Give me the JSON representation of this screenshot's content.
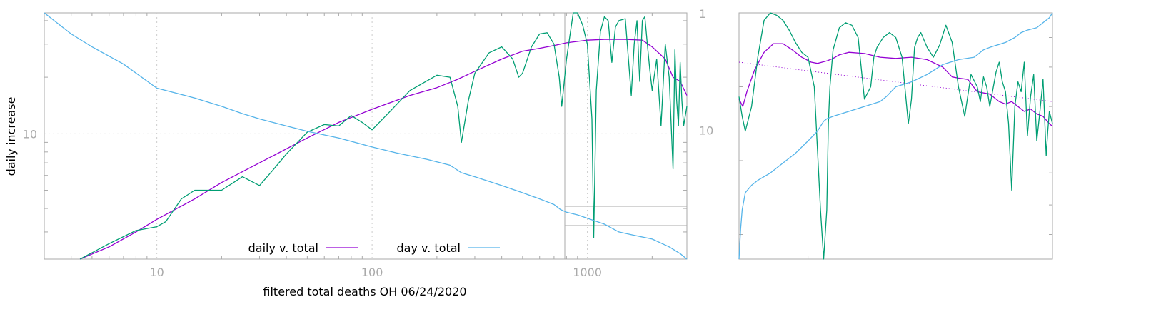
{
  "chart_data": [
    {
      "type": "line",
      "xlabel": "filtered total deaths OH 06/24/2020",
      "ylabel": "daily increase",
      "x_scale": "log",
      "y_scale": "log",
      "xlim": [
        3,
        2900
      ],
      "ylim": [
        2.15,
        44
      ],
      "x_ticks": [
        10,
        100,
        1000
      ],
      "x_tick_labels": [
        "10",
        "100",
        "1000"
      ],
      "y_ticks": [
        10
      ],
      "y_tick_labels": [
        "10"
      ],
      "y2_ticks": [
        1,
        10
      ],
      "y2_tick_labels": [
        "1",
        "10"
      ],
      "grid": true,
      "legend": [
        "daily v. total",
        "day v. total"
      ],
      "series": [
        {
          "name": "daily v. total",
          "color": "#9400d3",
          "x": [
            4.4,
            6,
            8,
            10,
            15,
            20,
            30,
            50,
            70,
            100,
            150,
            200,
            250,
            300,
            400,
            500,
            600,
            700,
            800,
            1000,
            1200,
            1500,
            1800,
            2000,
            2300,
            2500,
            2700,
            2900
          ],
          "y": [
            2.1,
            2.5,
            3.0,
            3.5,
            4.5,
            5.5,
            7.0,
            9.5,
            11.5,
            13.5,
            16.0,
            17.6,
            19.5,
            21.5,
            25.0,
            27.5,
            28.5,
            29.5,
            30.5,
            31.5,
            31.8,
            31.8,
            31.5,
            29.0,
            25.0,
            20.0,
            19.0,
            16.0
          ]
        },
        {
          "name": "",
          "color": "#009e73",
          "x": [
            4.4,
            6,
            8,
            10,
            11,
            13,
            15,
            20,
            25,
            30,
            35,
            40,
            50,
            60,
            70,
            80,
            90,
            100,
            120,
            150,
            200,
            230,
            250,
            260,
            280,
            300,
            350,
            400,
            450,
            480,
            500,
            550,
            600,
            650,
            700,
            740,
            760,
            800,
            860,
            900,
            950,
            1000,
            1050,
            1070,
            1100,
            1150,
            1200,
            1250,
            1300,
            1350,
            1400,
            1500,
            1600,
            1650,
            1700,
            1750,
            1800,
            1850,
            1900,
            1950,
            2000,
            2100,
            2200,
            2300,
            2400,
            2500,
            2550,
            2600,
            2650,
            2700,
            2750,
            2800,
            2900
          ],
          "y": [
            2.1,
            2.6,
            3.05,
            3.2,
            3.4,
            4.5,
            5.0,
            5.0,
            5.9,
            5.3,
            6.5,
            7.8,
            10.2,
            11.2,
            11.0,
            12.5,
            11.5,
            10.5,
            13.0,
            17.0,
            20.5,
            20.0,
            14.0,
            9.0,
            15.0,
            21.0,
            27.0,
            29.0,
            25.0,
            20.0,
            21.0,
            29.0,
            34.0,
            34.5,
            30.0,
            20.0,
            14.0,
            25.0,
            45.0,
            44.0,
            38.0,
            30.0,
            12.0,
            2.8,
            17.0,
            35.0,
            42.0,
            40.0,
            24.0,
            37.0,
            40.0,
            41.0,
            16.0,
            30.0,
            40.0,
            19.0,
            40.0,
            42.0,
            30.0,
            22.0,
            17.0,
            25.0,
            11.0,
            30.0,
            20.0,
            6.5,
            28.0,
            15.0,
            11.0,
            24.0,
            15.0,
            11.0,
            14.0
          ]
        },
        {
          "name": "day v. total",
          "color": "#56b4e9",
          "x": [
            3,
            4,
            5,
            7,
            10,
            15,
            20,
            25,
            30,
            40,
            50,
            70,
            100,
            130,
            180,
            230,
            260,
            300,
            400,
            500,
            600,
            700,
            750,
            800,
            900,
            1000,
            1200,
            1400,
            1600,
            2000,
            2400,
            2700,
            2900
          ],
          "y": [
            44,
            34,
            29,
            23.5,
            17.5,
            15.5,
            14.0,
            12.8,
            12.0,
            11.0,
            10.3,
            9.5,
            8.5,
            7.9,
            7.3,
            6.8,
            6.2,
            5.9,
            5.3,
            4.85,
            4.5,
            4.2,
            3.95,
            3.82,
            3.7,
            3.55,
            3.3,
            3.0,
            2.9,
            2.75,
            2.5,
            2.3,
            2.15
          ]
        }
      ]
    },
    {
      "type": "line",
      "grid": false,
      "series": [
        {
          "name": "",
          "color": "#9400d3",
          "x": [
            0.0,
            0.012,
            0.025,
            0.05,
            0.08,
            0.11,
            0.14,
            0.17,
            0.2,
            0.23,
            0.25,
            0.28,
            0.3,
            0.32,
            0.35,
            0.4,
            0.45,
            0.5,
            0.55,
            0.6,
            0.65,
            0.68,
            0.7,
            0.73,
            0.76,
            0.8,
            0.83,
            0.85,
            0.87,
            0.89,
            0.91,
            0.93,
            0.95,
            0.97,
            0.99,
            1.0
          ],
          "y": [
            0.65,
            0.62,
            0.68,
            0.77,
            0.84,
            0.875,
            0.875,
            0.85,
            0.82,
            0.8,
            0.795,
            0.805,
            0.815,
            0.83,
            0.84,
            0.835,
            0.82,
            0.815,
            0.82,
            0.81,
            0.78,
            0.74,
            0.735,
            0.73,
            0.68,
            0.67,
            0.64,
            0.63,
            0.64,
            0.62,
            0.6,
            0.61,
            0.59,
            0.58,
            0.55,
            0.54
          ]
        },
        {
          "name": "",
          "color": "#9400d3",
          "dashed": true,
          "x": [
            0.0,
            1.0
          ],
          "y": [
            0.8,
            0.64
          ]
        },
        {
          "name": "",
          "color": "#009e73",
          "x": [
            0.0,
            0.01,
            0.02,
            0.04,
            0.06,
            0.08,
            0.1,
            0.12,
            0.14,
            0.16,
            0.18,
            0.2,
            0.22,
            0.24,
            0.26,
            0.27,
            0.28,
            0.285,
            0.29,
            0.3,
            0.32,
            0.34,
            0.36,
            0.38,
            0.4,
            0.42,
            0.43,
            0.44,
            0.46,
            0.48,
            0.5,
            0.52,
            0.54,
            0.55,
            0.56,
            0.57,
            0.58,
            0.6,
            0.62,
            0.64,
            0.66,
            0.68,
            0.7,
            0.72,
            0.74,
            0.76,
            0.77,
            0.78,
            0.79,
            0.8,
            0.82,
            0.83,
            0.84,
            0.85,
            0.86,
            0.87,
            0.88,
            0.89,
            0.9,
            0.91,
            0.92,
            0.93,
            0.94,
            0.95,
            0.96,
            0.97,
            0.98,
            0.985,
            0.99,
            1.0
          ],
          "y": [
            0.66,
            0.58,
            0.52,
            0.62,
            0.82,
            0.97,
            1.0,
            0.99,
            0.97,
            0.93,
            0.88,
            0.84,
            0.82,
            0.7,
            0.2,
            0.0,
            0.2,
            0.55,
            0.7,
            0.85,
            0.94,
            0.96,
            0.95,
            0.9,
            0.65,
            0.7,
            0.82,
            0.86,
            0.9,
            0.92,
            0.9,
            0.82,
            0.55,
            0.65,
            0.86,
            0.9,
            0.92,
            0.86,
            0.82,
            0.87,
            0.95,
            0.88,
            0.7,
            0.58,
            0.75,
            0.7,
            0.64,
            0.74,
            0.7,
            0.62,
            0.76,
            0.8,
            0.72,
            0.68,
            0.55,
            0.28,
            0.62,
            0.72,
            0.68,
            0.8,
            0.5,
            0.66,
            0.75,
            0.48,
            0.6,
            0.73,
            0.42,
            0.52,
            0.6,
            0.55
          ]
        },
        {
          "name": "",
          "color": "#56b4e9",
          "x": [
            0.0,
            0.005,
            0.01,
            0.02,
            0.04,
            0.06,
            0.1,
            0.14,
            0.18,
            0.22,
            0.25,
            0.27,
            0.28,
            0.3,
            0.35,
            0.4,
            0.45,
            0.47,
            0.5,
            0.55,
            0.6,
            0.65,
            0.7,
            0.75,
            0.78,
            0.8,
            0.85,
            0.88,
            0.9,
            0.92,
            0.95,
            0.97,
            0.99,
            1.0
          ],
          "y": [
            0.0,
            0.12,
            0.2,
            0.27,
            0.3,
            0.32,
            0.35,
            0.39,
            0.43,
            0.48,
            0.52,
            0.56,
            0.57,
            0.58,
            0.6,
            0.62,
            0.64,
            0.66,
            0.7,
            0.72,
            0.75,
            0.79,
            0.81,
            0.82,
            0.85,
            0.86,
            0.88,
            0.9,
            0.92,
            0.93,
            0.94,
            0.96,
            0.98,
            1.0
          ]
        }
      ]
    }
  ]
}
